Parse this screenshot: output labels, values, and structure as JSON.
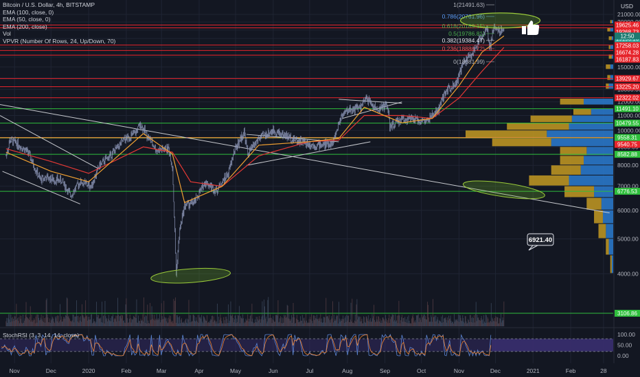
{
  "legend": [
    "Bitcoin / U.S. Dollar, 4h, BITSTAMP",
    "EMA (100, close, 0)",
    "EMA (50, close, 0)",
    "EMA (200, close)",
    "Vol",
    "VPVR (Number Of Rows, 24, Up/Down, 70)"
  ],
  "currency_label": "USD",
  "stoch_label": "StochRSI (3, 3, 14, 14, close)",
  "countdown_label": "12:50",
  "callout_label": "6921.40",
  "colors": {
    "background": "#131722",
    "grid": "#1f2433",
    "red_level": "#e8242b",
    "green_level": "#2fbf3c",
    "yellow_level": "#e6e043",
    "trendline": "#c9cbd0",
    "candles": "#8d97b8",
    "ema_orange": "#f0a032",
    "ema_red": "#e53935",
    "ema_blue": "#3f88e3",
    "vpvr_up": "#2c7dd1",
    "vpvr_down": "#c49a22",
    "stoch_k": "#5c86d6",
    "stoch_d": "#f2822d",
    "stoch_band": "#3a2f70"
  },
  "chart_data": {
    "type": "line",
    "log_scale": true,
    "x_axis": {
      "range": [
        "2019-10-20",
        "2021-03-08"
      ],
      "ticks": [
        "Nov",
        "Dec",
        "2020",
        "Feb",
        "Mar",
        "Apr",
        "May",
        "Jun",
        "Jul",
        "Aug",
        "Sep",
        "Oct",
        "Nov",
        "Dec",
        "2021",
        "Feb",
        "28"
      ]
    },
    "y_axis": {
      "range": [
        3000,
        23500
      ],
      "ticks": [
        4000,
        5000,
        6000,
        7000,
        8000,
        9000,
        10000,
        11000,
        12000,
        13000,
        14000,
        15000,
        16000,
        17000,
        18000,
        19000,
        20000,
        21000
      ]
    },
    "price_path": [
      [
        "2019-10-25",
        8500
      ],
      [
        "2019-10-28",
        9400
      ],
      [
        "2019-11-03",
        9200
      ],
      [
        "2019-11-12",
        8700
      ],
      [
        "2019-11-22",
        7300
      ],
      [
        "2019-11-27",
        7400
      ],
      [
        "2019-12-03",
        7300
      ],
      [
        "2019-12-10",
        7250
      ],
      [
        "2019-12-17",
        6600
      ],
      [
        "2019-12-25",
        7200
      ],
      [
        "2020-01-03",
        7000
      ],
      [
        "2020-01-10",
        8000
      ],
      [
        "2020-01-20",
        8600
      ],
      [
        "2020-01-30",
        9400
      ],
      [
        "2020-02-08",
        9800
      ],
      [
        "2020-02-13",
        10400
      ],
      [
        "2020-02-18",
        9700
      ],
      [
        "2020-02-26",
        8800
      ],
      [
        "2020-03-07",
        8900
      ],
      [
        "2020-03-10",
        7900
      ],
      [
        "2020-03-12",
        5200
      ],
      [
        "2020-03-13",
        4000
      ],
      [
        "2020-03-16",
        5300
      ],
      [
        "2020-03-20",
        6200
      ],
      [
        "2020-03-28",
        6300
      ],
      [
        "2020-04-06",
        7200
      ],
      [
        "2020-04-15",
        6800
      ],
      [
        "2020-04-25",
        7600
      ],
      [
        "2020-04-30",
        8800
      ],
      [
        "2020-05-08",
        9900
      ],
      [
        "2020-05-11",
        8600
      ],
      [
        "2020-05-20",
        9500
      ],
      [
        "2020-06-01",
        10000
      ],
      [
        "2020-06-10",
        9700
      ],
      [
        "2020-06-20",
        9400
      ],
      [
        "2020-07-05",
        9100
      ],
      [
        "2020-07-20",
        9200
      ],
      [
        "2020-07-27",
        11000
      ],
      [
        "2020-08-02",
        11400
      ],
      [
        "2020-08-12",
        11600
      ],
      [
        "2020-08-17",
        12300
      ],
      [
        "2020-08-25",
        11400
      ],
      [
        "2020-09-03",
        11800
      ],
      [
        "2020-09-05",
        10200
      ],
      [
        "2020-09-15",
        10800
      ],
      [
        "2020-09-25",
        10700
      ],
      [
        "2020-10-05",
        10600
      ],
      [
        "2020-10-15",
        11400
      ],
      [
        "2020-10-21",
        12900
      ],
      [
        "2020-10-30",
        13600
      ],
      [
        "2020-11-05",
        15500
      ],
      [
        "2020-11-12",
        16300
      ],
      [
        "2020-11-18",
        18000
      ],
      [
        "2020-11-24",
        19300
      ],
      [
        "2020-11-26",
        16700
      ],
      [
        "2020-11-30",
        19500
      ],
      [
        "2020-12-04",
        18900
      ],
      [
        "2020-12-08",
        19196
      ]
    ],
    "ema_200": [
      [
        "2019-10-25",
        8900
      ],
      [
        "2019-12-01",
        8200
      ],
      [
        "2020-01-01",
        7600
      ],
      [
        "2020-02-15",
        9000
      ],
      [
        "2020-03-10",
        8700
      ],
      [
        "2020-03-25",
        7200
      ],
      [
        "2020-04-20",
        7000
      ],
      [
        "2020-05-20",
        8500
      ],
      [
        "2020-06-30",
        9300
      ],
      [
        "2020-07-25",
        9400
      ],
      [
        "2020-08-15",
        11000
      ],
      [
        "2020-09-15",
        11000
      ],
      [
        "2020-10-10",
        10800
      ],
      [
        "2020-11-01",
        12300
      ],
      [
        "2020-11-20",
        14600
      ],
      [
        "2020-12-08",
        17000
      ]
    ],
    "ema_50": [
      [
        "2019-10-25",
        8700
      ],
      [
        "2019-12-01",
        7700
      ],
      [
        "2020-01-01",
        7200
      ],
      [
        "2020-02-15",
        9800
      ],
      [
        "2020-03-10",
        8600
      ],
      [
        "2020-03-20",
        6300
      ],
      [
        "2020-04-20",
        7000
      ],
      [
        "2020-05-20",
        9100
      ],
      [
        "2020-06-30",
        9300
      ],
      [
        "2020-07-25",
        9500
      ],
      [
        "2020-08-15",
        11600
      ],
      [
        "2020-09-15",
        10500
      ],
      [
        "2020-10-10",
        10800
      ],
      [
        "2020-11-01",
        13300
      ],
      [
        "2020-11-20",
        16500
      ],
      [
        "2020-12-08",
        18300
      ]
    ],
    "horizontal_levels": [
      {
        "value": 19625.46,
        "color": "red"
      },
      {
        "value": 19268.73,
        "color": "red"
      },
      {
        "value": 17258.03,
        "color": "red"
      },
      {
        "value": 16674.28,
        "color": "red"
      },
      {
        "value": 16187.83,
        "color": "red"
      },
      {
        "value": 13929.67,
        "color": "red"
      },
      {
        "value": 13225.2,
        "color": "red"
      },
      {
        "value": 12322.02,
        "color": "red"
      },
      {
        "value": 11491.1,
        "color": "green"
      },
      {
        "value": 10479.55,
        "color": "green"
      },
      {
        "value": 9558.31,
        "color": "red"
      },
      {
        "value": 9540.75,
        "color": "yellow"
      },
      {
        "value": 8582.88,
        "color": "green"
      },
      {
        "value": 6776.53,
        "color": "green"
      },
      {
        "value": 3106.86,
        "color": "green"
      }
    ],
    "price_labels": [
      {
        "text": "19625.46",
        "value": 19625.46,
        "color": "red"
      },
      {
        "text": "19268.73",
        "value": 19268.73,
        "color": "red"
      },
      {
        "text": "19196.16",
        "value": 19196.16,
        "color": "teal"
      },
      {
        "text": "17258.03",
        "value": 17258.03,
        "color": "red"
      },
      {
        "text": "16674.28",
        "value": 16674.28,
        "color": "red"
      },
      {
        "text": "16187.83",
        "value": 16187.83,
        "color": "red"
      },
      {
        "text": "13929.67",
        "value": 13929.67,
        "color": "red"
      },
      {
        "text": "13225.20",
        "value": 13225.2,
        "color": "red"
      },
      {
        "text": "12322.02",
        "value": 12322.02,
        "color": "red"
      },
      {
        "text": "11491.10",
        "value": 11491.1,
        "color": "green"
      },
      {
        "text": "10479.55",
        "value": 10479.55,
        "color": "green"
      },
      {
        "text": "9558.31",
        "value": 9558.31,
        "color": "green"
      },
      {
        "text": "9540.75",
        "value": 9540.75,
        "color": "red"
      },
      {
        "text": "8582.88",
        "value": 8582.88,
        "color": "green"
      },
      {
        "text": "6776.53",
        "value": 6776.53,
        "color": "green"
      },
      {
        "text": "3106.86",
        "value": 3106.86,
        "color": "green"
      }
    ],
    "fibonacci": [
      {
        "text": "1(21491.63)",
        "ratio": 1,
        "price": 21491.63,
        "color": "gray"
      },
      {
        "text": "0.786(20761.96)",
        "ratio": 0.786,
        "price": 20761.96,
        "color": "blue"
      },
      {
        "text": "0.618(20189.15)",
        "ratio": 0.618,
        "price": 20189.15,
        "color": "green"
      },
      {
        "text": "0.5(19786.81)",
        "ratio": 0.5,
        "price": 19786.81,
        "color": "green"
      },
      {
        "text": "0.382(19384.47)",
        "ratio": 0.382,
        "price": 19384.47,
        "color": "white"
      },
      {
        "text": "0.236(18886.72)",
        "ratio": 0.236,
        "price": 18886.72,
        "color": "red"
      },
      {
        "text": "0(18081.99)",
        "ratio": 0,
        "price": 18081.99,
        "color": "gray"
      }
    ],
    "trendlines": [
      {
        "from": [
          "2019-10-20",
          11800
        ],
        "to": [
          "2021-03-05",
          5900
        ]
      },
      {
        "from": [
          "2019-10-20",
          11000
        ],
        "to": [
          "2020-01-10",
          7800
        ]
      },
      {
        "from": [
          "2019-10-22",
          7700
        ],
        "to": [
          "2019-12-25",
          6250
        ]
      },
      {
        "from": [
          "2020-05-10",
          9750
        ],
        "to": [
          "2020-07-25",
          9300
        ]
      },
      {
        "from": [
          "2020-05-10",
          8000
        ],
        "to": [
          "2020-08-20",
          9300
        ]
      },
      {
        "from": [
          "2020-07-25",
          12200
        ],
        "to": [
          "2020-09-15",
          11900
        ]
      },
      {
        "from": [
          "2020-07-28",
          10800
        ],
        "to": [
          "2020-09-15",
          12000
        ]
      }
    ],
    "annotations": [
      {
        "type": "ellipse",
        "center": [
          "2020-03-25",
          3950
        ]
      },
      {
        "type": "ellipse",
        "center": [
          "2020-12-08",
          6840
        ]
      },
      {
        "type": "ellipse",
        "center": [
          "2020-12-05",
          20200
        ]
      },
      {
        "type": "callout",
        "text": "6921.40",
        "value": 6921.4
      },
      {
        "type": "icon",
        "name": "thumbs-up"
      }
    ],
    "vpvr": [
      {
        "price": 12000,
        "up": 0.2,
        "down": 0.16
      },
      {
        "price": 11250,
        "up": 0.15,
        "down": 0.12
      },
      {
        "price": 10750,
        "up": 0.28,
        "down": 0.28
      },
      {
        "price": 10250,
        "up": 0.3,
        "down": 0.42
      },
      {
        "price": 9750,
        "up": 0.45,
        "down": 0.55
      },
      {
        "price": 9250,
        "up": 0.42,
        "down": 0.4
      },
      {
        "price": 8750,
        "up": 0.18,
        "down": 0.18
      },
      {
        "price": 8250,
        "up": 0.2,
        "down": 0.16
      },
      {
        "price": 7750,
        "up": 0.22,
        "down": 0.2
      },
      {
        "price": 7250,
        "up": 0.3,
        "down": 0.27
      },
      {
        "price": 6750,
        "up": 0.13,
        "down": 0.2
      },
      {
        "price": 6250,
        "up": 0.08,
        "down": 0.1
      },
      {
        "price": 5750,
        "up": 0.07,
        "down": 0.06
      },
      {
        "price": 5250,
        "up": 0.05,
        "down": 0.05
      },
      {
        "price": 4750,
        "up": 0.03,
        "down": 0.02
      },
      {
        "price": 4250,
        "up": 0.01,
        "down": 0.01
      },
      {
        "price": 13250,
        "up": 0.03,
        "down": 0.02
      },
      {
        "price": 14000,
        "up": 0.02,
        "down": 0.02
      },
      {
        "price": 15000,
        "up": 0.02,
        "down": 0.03
      },
      {
        "price": 16000,
        "up": 0.01,
        "down": 0.02
      },
      {
        "price": 17000,
        "up": 0.02,
        "down": 0.01
      },
      {
        "price": 18000,
        "up": 0.01,
        "down": 0.02
      },
      {
        "price": 19000,
        "up": 0.02,
        "down": 0.02
      },
      {
        "price": 20000,
        "up": 0.01,
        "down": 0.01
      }
    ],
    "stoch_rsi": {
      "y_range": [
        0,
        100
      ],
      "ticks": [
        0,
        50,
        100
      ],
      "band": [
        20,
        80
      ]
    }
  }
}
